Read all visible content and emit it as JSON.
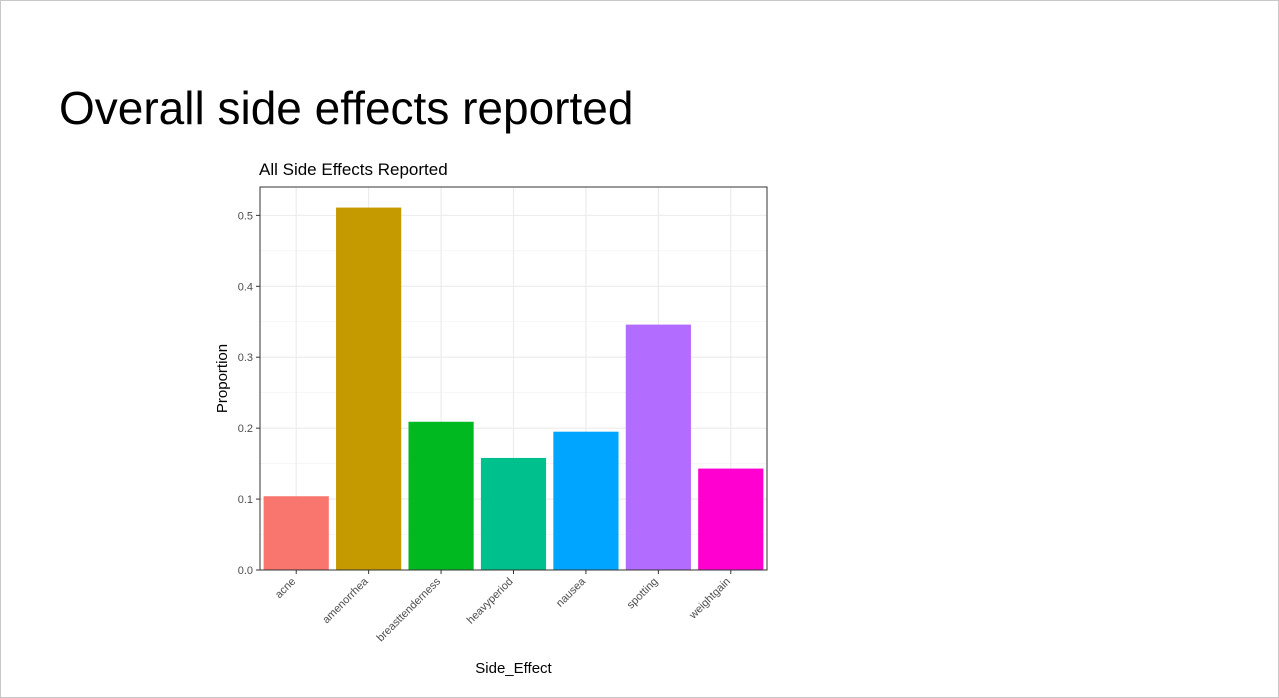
{
  "slide": {
    "title": "Overall side effects reported"
  },
  "chart_data": {
    "type": "bar",
    "title": "All Side Effects Reported",
    "xlabel": "Side_Effect",
    "ylabel": "Proportion",
    "categories": [
      "acne",
      "amenorrhea",
      "breasttenderness",
      "heavyperiod",
      "nausea",
      "spotting",
      "weightgain"
    ],
    "values": [
      0.104,
      0.511,
      0.209,
      0.158,
      0.195,
      0.346,
      0.143
    ],
    "colors": [
      "#F8766D",
      "#C49A00",
      "#00B81F",
      "#00C08D",
      "#00A5FF",
      "#B26CFF",
      "#FF00D0"
    ],
    "ylim": [
      0,
      0.54
    ],
    "yticks": [
      "0.0",
      "0.1",
      "0.2",
      "0.3",
      "0.4",
      "0.5"
    ],
    "grid": true,
    "legend": "none"
  }
}
